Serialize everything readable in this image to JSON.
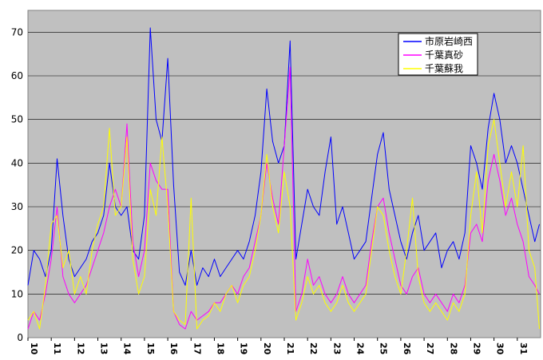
{
  "chart_data": {
    "type": "line",
    "title": "",
    "xlabel": "",
    "ylabel": "",
    "ylim": [
      0,
      75
    ],
    "y_ticks": [
      "0",
      "10",
      "20",
      "30",
      "40",
      "50",
      "60",
      "70"
    ],
    "x_ticks": [
      "10",
      "11",
      "12",
      "13",
      "14",
      "15",
      "16",
      "17",
      "18",
      "19",
      "20",
      "21",
      "22",
      "23",
      "24",
      "25",
      "26",
      "27",
      "28",
      "29",
      "30",
      "31"
    ],
    "x_range": [
      10,
      32
    ],
    "grid": "horizontal",
    "plot_background": "#c0c0c0",
    "legend_position": "top-right",
    "series": [
      {
        "name": "市原岩崎西",
        "color": "#0000ff",
        "values": [
          [
            10.0,
            12
          ],
          [
            10.25,
            20
          ],
          [
            10.5,
            18
          ],
          [
            10.75,
            14
          ],
          [
            11.0,
            20
          ],
          [
            11.25,
            41
          ],
          [
            11.5,
            28
          ],
          [
            11.75,
            18
          ],
          [
            12.0,
            14
          ],
          [
            12.25,
            16
          ],
          [
            12.5,
            18
          ],
          [
            12.75,
            22
          ],
          [
            13.0,
            24
          ],
          [
            13.25,
            28
          ],
          [
            13.5,
            40
          ],
          [
            13.75,
            30
          ],
          [
            14.0,
            28
          ],
          [
            14.25,
            30
          ],
          [
            14.5,
            20
          ],
          [
            14.75,
            18
          ],
          [
            15.0,
            28
          ],
          [
            15.25,
            71
          ],
          [
            15.5,
            50
          ],
          [
            15.75,
            45
          ],
          [
            16.0,
            64
          ],
          [
            16.25,
            35
          ],
          [
            16.5,
            15
          ],
          [
            16.75,
            12
          ],
          [
            17.0,
            20
          ],
          [
            17.25,
            12
          ],
          [
            17.5,
            16
          ],
          [
            17.75,
            14
          ],
          [
            18.0,
            18
          ],
          [
            18.25,
            14
          ],
          [
            18.5,
            16
          ],
          [
            18.75,
            18
          ],
          [
            19.0,
            20
          ],
          [
            19.25,
            18
          ],
          [
            19.5,
            22
          ],
          [
            19.75,
            28
          ],
          [
            20.0,
            38
          ],
          [
            20.25,
            57
          ],
          [
            20.5,
            45
          ],
          [
            20.75,
            40
          ],
          [
            21.0,
            44
          ],
          [
            21.25,
            68
          ],
          [
            21.5,
            18
          ],
          [
            21.75,
            26
          ],
          [
            22.0,
            34
          ],
          [
            22.25,
            30
          ],
          [
            22.5,
            28
          ],
          [
            22.75,
            38
          ],
          [
            23.0,
            46
          ],
          [
            23.25,
            26
          ],
          [
            23.5,
            30
          ],
          [
            23.75,
            24
          ],
          [
            24.0,
            18
          ],
          [
            24.25,
            20
          ],
          [
            24.5,
            22
          ],
          [
            24.75,
            32
          ],
          [
            25.0,
            42
          ],
          [
            25.25,
            47
          ],
          [
            25.5,
            34
          ],
          [
            25.75,
            28
          ],
          [
            26.0,
            22
          ],
          [
            26.25,
            18
          ],
          [
            26.5,
            24
          ],
          [
            26.75,
            28
          ],
          [
            27.0,
            20
          ],
          [
            27.25,
            22
          ],
          [
            27.5,
            24
          ],
          [
            27.75,
            16
          ],
          [
            28.0,
            20
          ],
          [
            28.25,
            22
          ],
          [
            28.5,
            18
          ],
          [
            28.75,
            24
          ],
          [
            29.0,
            44
          ],
          [
            29.25,
            40
          ],
          [
            29.5,
            34
          ],
          [
            29.75,
            48
          ],
          [
            30.0,
            56
          ],
          [
            30.25,
            50
          ],
          [
            30.5,
            40
          ],
          [
            30.75,
            44
          ],
          [
            31.0,
            40
          ],
          [
            31.25,
            34
          ],
          [
            31.5,
            28
          ],
          [
            31.75,
            22
          ],
          [
            31.95,
            26
          ]
        ]
      },
      {
        "name": "千葉真砂",
        "color": "#ff00ff",
        "values": [
          [
            10.0,
            2
          ],
          [
            10.25,
            6
          ],
          [
            10.5,
            4
          ],
          [
            10.75,
            10
          ],
          [
            11.0,
            18
          ],
          [
            11.25,
            30
          ],
          [
            11.5,
            14
          ],
          [
            11.75,
            10
          ],
          [
            12.0,
            8
          ],
          [
            12.25,
            10
          ],
          [
            12.5,
            12
          ],
          [
            12.75,
            16
          ],
          [
            13.0,
            20
          ],
          [
            13.25,
            24
          ],
          [
            13.5,
            30
          ],
          [
            13.75,
            34
          ],
          [
            14.0,
            30
          ],
          [
            14.25,
            49
          ],
          [
            14.5,
            22
          ],
          [
            14.75,
            14
          ],
          [
            15.0,
            20
          ],
          [
            15.25,
            40
          ],
          [
            15.5,
            36
          ],
          [
            15.75,
            34
          ],
          [
            16.0,
            34
          ],
          [
            16.25,
            6
          ],
          [
            16.5,
            3
          ],
          [
            16.75,
            2
          ],
          [
            17.0,
            6
          ],
          [
            17.25,
            4
          ],
          [
            17.5,
            5
          ],
          [
            17.75,
            6
          ],
          [
            18.0,
            8
          ],
          [
            18.25,
            8
          ],
          [
            18.5,
            10
          ],
          [
            18.75,
            12
          ],
          [
            19.0,
            10
          ],
          [
            19.25,
            14
          ],
          [
            19.5,
            16
          ],
          [
            19.75,
            22
          ],
          [
            20.0,
            28
          ],
          [
            20.25,
            40
          ],
          [
            20.5,
            32
          ],
          [
            20.75,
            26
          ],
          [
            21.0,
            44
          ],
          [
            21.25,
            62
          ],
          [
            21.5,
            6
          ],
          [
            21.75,
            10
          ],
          [
            22.0,
            18
          ],
          [
            22.25,
            12
          ],
          [
            22.5,
            14
          ],
          [
            22.75,
            10
          ],
          [
            23.0,
            8
          ],
          [
            23.25,
            10
          ],
          [
            23.5,
            14
          ],
          [
            23.75,
            10
          ],
          [
            24.0,
            8
          ],
          [
            24.25,
            10
          ],
          [
            24.5,
            12
          ],
          [
            24.75,
            22
          ],
          [
            25.0,
            30
          ],
          [
            25.25,
            32
          ],
          [
            25.5,
            24
          ],
          [
            25.75,
            18
          ],
          [
            26.0,
            12
          ],
          [
            26.25,
            10
          ],
          [
            26.5,
            14
          ],
          [
            26.75,
            16
          ],
          [
            27.0,
            10
          ],
          [
            27.25,
            8
          ],
          [
            27.5,
            10
          ],
          [
            27.75,
            8
          ],
          [
            28.0,
            6
          ],
          [
            28.25,
            10
          ],
          [
            28.5,
            8
          ],
          [
            28.75,
            12
          ],
          [
            29.0,
            24
          ],
          [
            29.25,
            26
          ],
          [
            29.5,
            22
          ],
          [
            29.75,
            36
          ],
          [
            30.0,
            42
          ],
          [
            30.25,
            36
          ],
          [
            30.5,
            28
          ],
          [
            30.75,
            32
          ],
          [
            31.0,
            26
          ],
          [
            31.25,
            22
          ],
          [
            31.5,
            14
          ],
          [
            31.75,
            12
          ],
          [
            31.95,
            10
          ]
        ]
      },
      {
        "name": "千葉蘇我",
        "color": "#ffff00",
        "values": [
          [
            10.0,
            4
          ],
          [
            10.25,
            6
          ],
          [
            10.5,
            2
          ],
          [
            10.75,
            12
          ],
          [
            11.0,
            26
          ],
          [
            11.25,
            28
          ],
          [
            11.5,
            16
          ],
          [
            11.75,
            20
          ],
          [
            12.0,
            10
          ],
          [
            12.25,
            14
          ],
          [
            12.5,
            10
          ],
          [
            12.75,
            20
          ],
          [
            13.0,
            26
          ],
          [
            13.25,
            30
          ],
          [
            13.5,
            48
          ],
          [
            13.75,
            28
          ],
          [
            14.0,
            30
          ],
          [
            14.25,
            46
          ],
          [
            14.5,
            18
          ],
          [
            14.75,
            10
          ],
          [
            15.0,
            14
          ],
          [
            15.25,
            34
          ],
          [
            15.5,
            28
          ],
          [
            15.75,
            46
          ],
          [
            16.0,
            30
          ],
          [
            16.25,
            6
          ],
          [
            16.5,
            4
          ],
          [
            16.75,
            3
          ],
          [
            17.0,
            32
          ],
          [
            17.25,
            2
          ],
          [
            17.5,
            4
          ],
          [
            17.75,
            5
          ],
          [
            18.0,
            8
          ],
          [
            18.25,
            6
          ],
          [
            18.5,
            10
          ],
          [
            18.75,
            12
          ],
          [
            19.0,
            8
          ],
          [
            19.25,
            12
          ],
          [
            19.5,
            14
          ],
          [
            19.75,
            20
          ],
          [
            20.0,
            28
          ],
          [
            20.25,
            42
          ],
          [
            20.5,
            30
          ],
          [
            20.75,
            24
          ],
          [
            21.0,
            38
          ],
          [
            21.25,
            30
          ],
          [
            21.5,
            4
          ],
          [
            21.75,
            8
          ],
          [
            22.0,
            14
          ],
          [
            22.25,
            10
          ],
          [
            22.5,
            12
          ],
          [
            22.75,
            8
          ],
          [
            23.0,
            6
          ],
          [
            23.25,
            8
          ],
          [
            23.5,
            12
          ],
          [
            23.75,
            8
          ],
          [
            24.0,
            6
          ],
          [
            24.25,
            8
          ],
          [
            24.5,
            10
          ],
          [
            24.75,
            20
          ],
          [
            25.0,
            30
          ],
          [
            25.25,
            28
          ],
          [
            25.5,
            20
          ],
          [
            25.75,
            14
          ],
          [
            26.0,
            10
          ],
          [
            26.25,
            20
          ],
          [
            26.5,
            32
          ],
          [
            26.75,
            14
          ],
          [
            27.0,
            8
          ],
          [
            27.25,
            6
          ],
          [
            27.5,
            8
          ],
          [
            27.75,
            6
          ],
          [
            28.0,
            4
          ],
          [
            28.25,
            8
          ],
          [
            28.5,
            6
          ],
          [
            28.75,
            10
          ],
          [
            29.0,
            28
          ],
          [
            29.25,
            38
          ],
          [
            29.5,
            24
          ],
          [
            29.75,
            44
          ],
          [
            30.0,
            50
          ],
          [
            30.25,
            40
          ],
          [
            30.5,
            30
          ],
          [
            30.75,
            38
          ],
          [
            31.0,
            30
          ],
          [
            31.25,
            44
          ],
          [
            31.5,
            20
          ],
          [
            31.75,
            16
          ],
          [
            31.95,
            2
          ]
        ]
      }
    ]
  }
}
